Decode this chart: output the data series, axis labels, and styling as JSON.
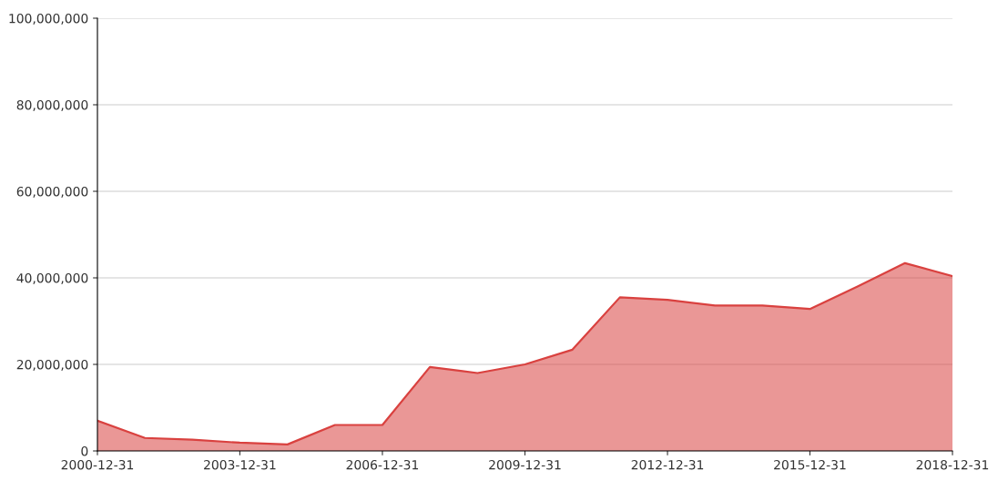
{
  "chart_data": {
    "type": "area",
    "x": [
      "2000-12-31",
      "2001-12-31",
      "2002-12-31",
      "2003-12-31",
      "2004-12-31",
      "2005-12-31",
      "2006-12-31",
      "2007-12-31",
      "2008-12-31",
      "2009-12-31",
      "2010-12-31",
      "2011-12-31",
      "2012-12-31",
      "2013-12-31",
      "2014-12-31",
      "2015-12-31",
      "2016-12-31",
      "2017-12-31",
      "2018-12-31"
    ],
    "series": [
      {
        "color": "#d9413f",
        "values": [
          7000000,
          3000000,
          2600000,
          1900000,
          1500000,
          6000000,
          6000000,
          19400000,
          18000000,
          20000000,
          23400000,
          35500000,
          34900000,
          33600000,
          33600000,
          32800000,
          38000000,
          43400000,
          40400000
        ]
      }
    ],
    "xlim": [
      "2000-12-31",
      "2018-12-31"
    ],
    "xticks": [
      "2000-12-31",
      "2003-12-31",
      "2006-12-31",
      "2009-12-31",
      "2012-12-31",
      "2015-12-31",
      "2018-12-31"
    ],
    "ylim": [
      0,
      100000000
    ],
    "yticks": [
      0,
      {
        "value": 20000000,
        "label": "20,000,000"
      },
      {
        "value": 40000000,
        "label": "40,000,000"
      },
      {
        "value": 60000000,
        "label": "60,000,000"
      },
      {
        "value": 80000000,
        "label": "80,000,000"
      },
      {
        "value": 100000000,
        "label": "100,000,000"
      }
    ],
    "grid": "y"
  }
}
